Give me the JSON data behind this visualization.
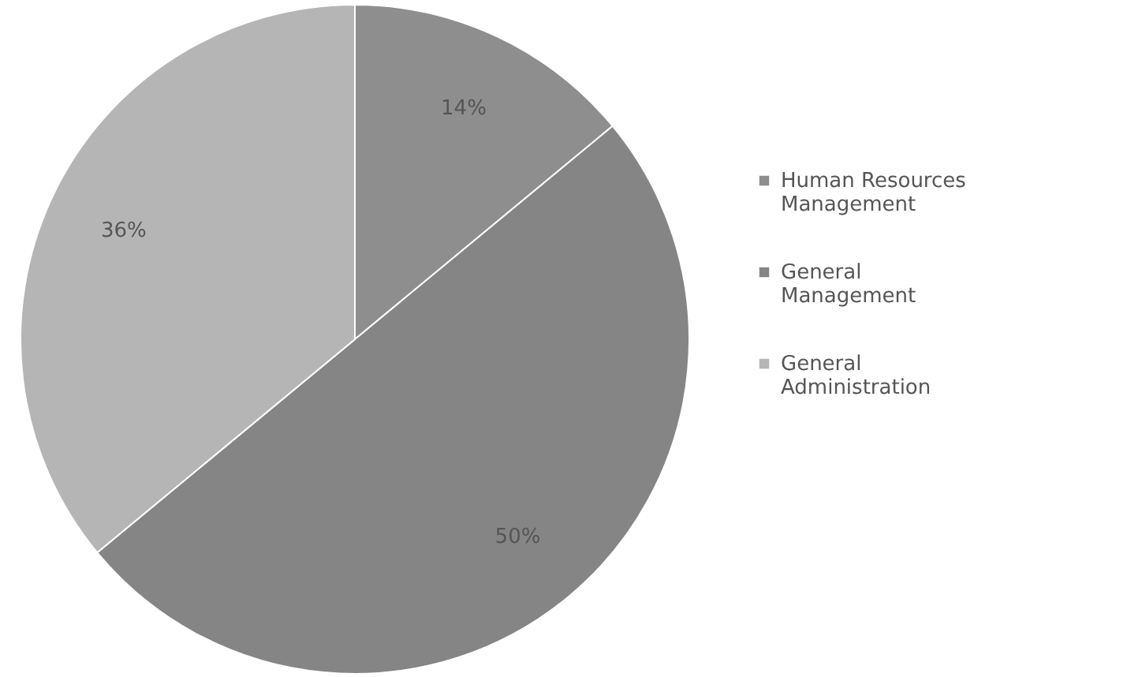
{
  "chart_data": {
    "type": "pie",
    "categories": [
      "Human Resources Management",
      "General Management",
      "General Administration"
    ],
    "values": [
      14,
      50,
      36
    ],
    "colors": [
      "#8e8e8e",
      "#858585",
      "#b5b5b5"
    ],
    "value_labels": [
      "14%",
      "50%",
      "36%"
    ],
    "legend": "right"
  }
}
